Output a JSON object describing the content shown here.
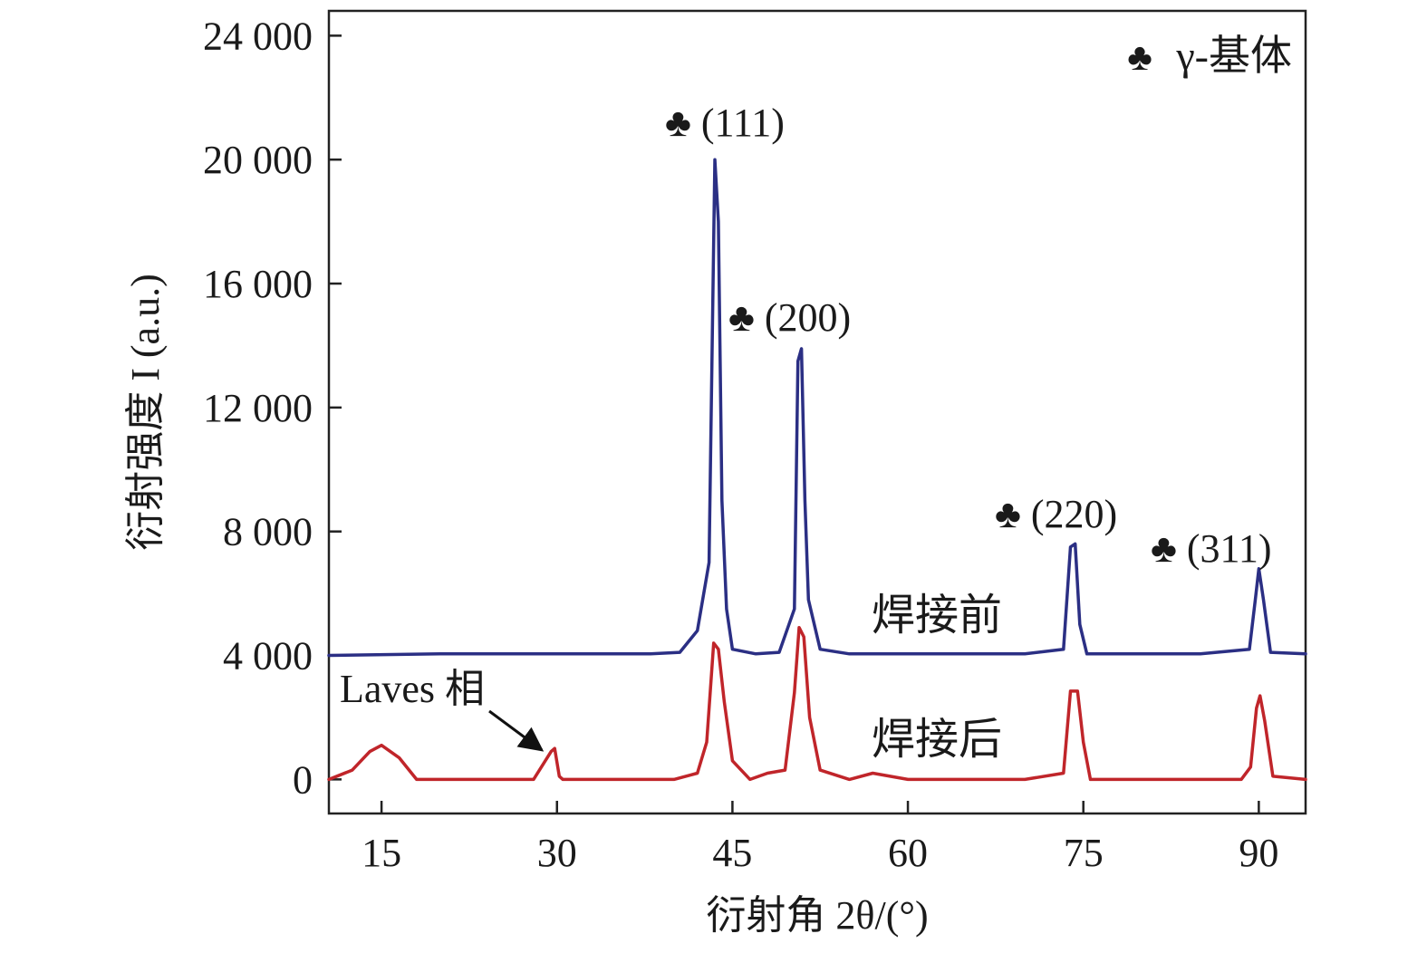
{
  "chart_data": {
    "type": "line",
    "title": "",
    "xlabel": "衍射角 2θ/(°)",
    "ylabel": "衍射强度 I (a.u.)",
    "xlim": [
      10.5,
      94
    ],
    "ylim": [
      -1100,
      24800
    ],
    "x_ticks": [
      15,
      30,
      45,
      60,
      75,
      90
    ],
    "x_tick_labels": [
      "15",
      "30",
      "45",
      "60",
      "75",
      "90"
    ],
    "y_ticks": [
      0,
      4000,
      8000,
      12000,
      16000,
      20000,
      24000
    ],
    "y_tick_labels": [
      "0",
      "4 000",
      "8 000",
      "12 000",
      "16 000",
      "20 000",
      "24 000"
    ],
    "grid": false,
    "legend": {
      "symbol": "♣",
      "label": "γ-基体",
      "placement": "top-right"
    },
    "series": [
      {
        "name": "焊接前",
        "color": "#2b2f84",
        "x": [
          10.5,
          20,
          30,
          38,
          40.5,
          42,
          43,
          43.5,
          43.8,
          44.1,
          44.5,
          45,
          47,
          49,
          50.3,
          50.6,
          50.9,
          51.2,
          51.5,
          52.5,
          55,
          60,
          70,
          73.3,
          73.9,
          74.3,
          74.7,
          75.3,
          78,
          85,
          89.2,
          89.7,
          90,
          90.4,
          91,
          94
        ],
        "y": [
          4000,
          4050,
          4050,
          4050,
          4100,
          4800,
          7000,
          20000,
          18000,
          9000,
          5500,
          4200,
          4050,
          4100,
          5500,
          13500,
          13900,
          9000,
          5800,
          4200,
          4050,
          4050,
          4050,
          4200,
          7500,
          7600,
          5000,
          4050,
          4050,
          4050,
          4200,
          5800,
          6800,
          5800,
          4100,
          4050
        ]
      },
      {
        "name": "焊接后",
        "color": "#c0252a",
        "x": [
          10.5,
          12.5,
          14,
          15,
          16.5,
          18,
          22,
          25,
          28,
          29.5,
          29.8,
          30.2,
          30.5,
          35,
          40,
          42,
          42.8,
          43.4,
          43.8,
          44.3,
          45,
          46.5,
          48,
          49.5,
          50.3,
          50.7,
          51.1,
          51.6,
          52.5,
          55,
          57,
          60,
          70,
          73.3,
          73.9,
          74.5,
          75,
          75.6,
          80,
          88.5,
          89.3,
          89.8,
          90.1,
          90.5,
          91.2,
          94
        ],
        "y": [
          0,
          300,
          900,
          1100,
          700,
          0,
          0,
          0,
          0,
          900,
          1000,
          100,
          0,
          0,
          0,
          200,
          1200,
          4400,
          4200,
          2500,
          600,
          0,
          200,
          300,
          2800,
          4900,
          4600,
          2000,
          300,
          0,
          200,
          0,
          0,
          200,
          2850,
          2850,
          1200,
          0,
          0,
          0,
          400,
          2300,
          2700,
          1900,
          100,
          0
        ]
      }
    ],
    "annotations": [
      {
        "text": "♣ (111)",
        "x": 43.7,
        "y": 20100
      },
      {
        "text": "♣ (200)",
        "x": 50.8,
        "y": 14000
      },
      {
        "text": "♣ (220)",
        "x": 74.3,
        "y": 7700
      },
      {
        "text": "♣ (311)",
        "x": 90,
        "y": 6900
      },
      {
        "text": "焊接前",
        "x": 61,
        "y": 4400
      },
      {
        "text": "焊接后",
        "x": 61,
        "y": 800
      },
      {
        "text": "Laves 相",
        "x": 29.8,
        "y": 1000
      }
    ]
  }
}
